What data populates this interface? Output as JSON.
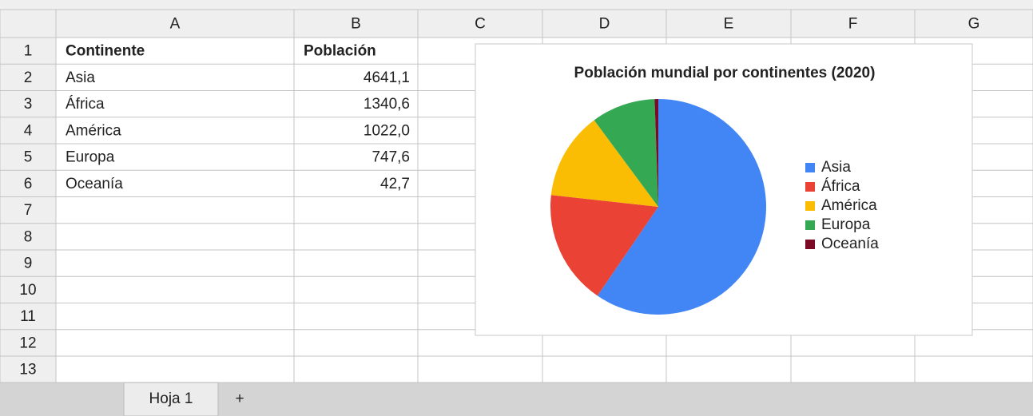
{
  "columns": [
    "A",
    "B",
    "C",
    "D",
    "E",
    "F",
    "G"
  ],
  "row_numbers": [
    1,
    2,
    3,
    4,
    5,
    6,
    7,
    8,
    9,
    10,
    11,
    12,
    13
  ],
  "table": {
    "rows": [
      [
        "Continente",
        "Población"
      ],
      [
        "Asia",
        "4641,1"
      ],
      [
        "África",
        "1340,6"
      ],
      [
        "América",
        "1022,0"
      ],
      [
        "Europa",
        "747,6"
      ],
      [
        "Oceanía",
        "42,7"
      ]
    ]
  },
  "tabs": [
    "Hoja 1"
  ],
  "add_tab": "+",
  "chart_data": {
    "type": "pie",
    "title": "Población mundial por continentes (2020)",
    "categories": [
      "Asia",
      "África",
      "América",
      "Europa",
      "Oceanía"
    ],
    "values": [
      4641.1,
      1340.6,
      1022.0,
      747.6,
      42.7
    ],
    "colors": [
      "#4285f4",
      "#ea4335",
      "#fbbc04",
      "#34a853",
      "#7b0a26"
    ],
    "legend": "right"
  }
}
